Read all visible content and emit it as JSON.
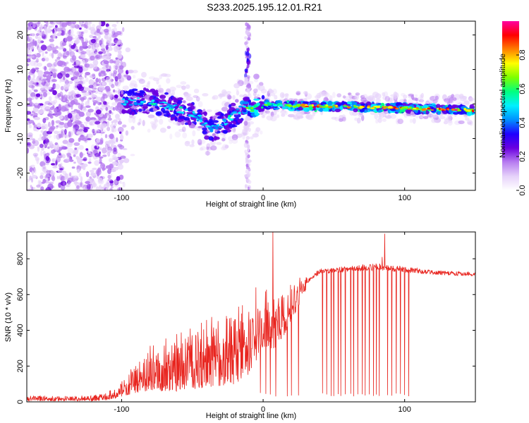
{
  "title": "S233.2025.195.12.01.R21",
  "chart_data": [
    {
      "type": "heatmap",
      "xlabel": "Height of straight line (km)",
      "ylabel": "Frequency (Hz)",
      "xlim": [
        -167,
        150
      ],
      "ylim": [
        -25,
        24
      ],
      "xticks": [
        -100,
        0,
        100
      ],
      "yticks": [
        -20,
        -10,
        0,
        10,
        20
      ],
      "colorbar": {
        "label": "Normalized spectral amplitude",
        "range": [
          0,
          1
        ],
        "ticks": [
          "0.0",
          "0.2",
          "0.4",
          "0.6",
          "0.8"
        ],
        "colors": [
          "#ffffff",
          "#e6d2fa",
          "#b77cf0",
          "#6a00e0",
          "#1f00ff",
          "#0090ff",
          "#00f0ff",
          "#00ff80",
          "#7dff00",
          "#ffff00",
          "#ff8000",
          "#ff0000",
          "#ff00a0"
        ]
      },
      "ridge": [
        {
          "x": -100,
          "y": 0.5
        },
        {
          "x": -80,
          "y": 1.0
        },
        {
          "x": -60,
          "y": -1.5
        },
        {
          "x": -45,
          "y": -4.0
        },
        {
          "x": -38,
          "y": -7.5
        },
        {
          "x": -30,
          "y": -6.0
        },
        {
          "x": -20,
          "y": -3.0
        },
        {
          "x": -12,
          "y": 0.0
        },
        {
          "x": -8,
          "y": -1.5
        },
        {
          "x": 0,
          "y": 0.0
        },
        {
          "x": 20,
          "y": -0.5
        },
        {
          "x": 50,
          "y": -0.7
        },
        {
          "x": 80,
          "y": -1.0
        },
        {
          "x": 100,
          "y": -1.2
        },
        {
          "x": 120,
          "y": -1.5
        },
        {
          "x": 148,
          "y": -1.8
        }
      ]
    },
    {
      "type": "line",
      "xlabel": "Height of straight line (km)",
      "ylabel": "SNR (10 * v/v)",
      "xlim": [
        -167,
        150
      ],
      "ylim": [
        0,
        950
      ],
      "xticks": [
        -100,
        0,
        100
      ],
      "yticks": [
        0,
        200,
        400,
        600,
        800
      ],
      "series": [
        {
          "color": "#e8241e",
          "envelope": [
            {
              "x": -167,
              "lo": 5,
              "hi": 35
            },
            {
              "x": -120,
              "lo": 5,
              "hi": 35
            },
            {
              "x": -110,
              "lo": 10,
              "hi": 60
            },
            {
              "x": -100,
              "lo": 30,
              "hi": 120
            },
            {
              "x": -90,
              "lo": 50,
              "hi": 220
            },
            {
              "x": -80,
              "lo": 60,
              "hi": 320
            },
            {
              "x": -70,
              "lo": 60,
              "hi": 360
            },
            {
              "x": -60,
              "lo": 60,
              "hi": 380
            },
            {
              "x": -50,
              "lo": 70,
              "hi": 420
            },
            {
              "x": -40,
              "lo": 80,
              "hi": 460
            },
            {
              "x": -30,
              "lo": 90,
              "hi": 500
            },
            {
              "x": -20,
              "lo": 100,
              "hi": 530
            },
            {
              "x": -10,
              "lo": 150,
              "hi": 560
            },
            {
              "x": 0,
              "lo": 300,
              "hi": 620
            },
            {
              "x": 10,
              "lo": 300,
              "hi": 600
            },
            {
              "x": 20,
              "lo": 450,
              "hi": 660
            },
            {
              "x": 30,
              "lo": 620,
              "hi": 720
            },
            {
              "x": 40,
              "lo": 690,
              "hi": 760
            },
            {
              "x": 60,
              "lo": 700,
              "hi": 780
            },
            {
              "x": 80,
              "lo": 700,
              "hi": 800
            },
            {
              "x": 100,
              "lo": 690,
              "hi": 780
            },
            {
              "x": 120,
              "lo": 690,
              "hi": 750
            },
            {
              "x": 150,
              "lo": 680,
              "hi": 740
            }
          ],
          "spikes": [
            {
              "x": 7,
              "y": 950
            },
            {
              "x": 86,
              "y": 940
            },
            {
              "x": -5,
              "y": 640
            },
            {
              "x": 84,
              "y": 810
            }
          ],
          "dropouts": [
            -2,
            2,
            5,
            9,
            17,
            20,
            25,
            42,
            45,
            48,
            50,
            53,
            55,
            58,
            62,
            64,
            67,
            70,
            72,
            75,
            78,
            80,
            82,
            88,
            91,
            94,
            97,
            100,
            103
          ]
        }
      ]
    }
  ]
}
